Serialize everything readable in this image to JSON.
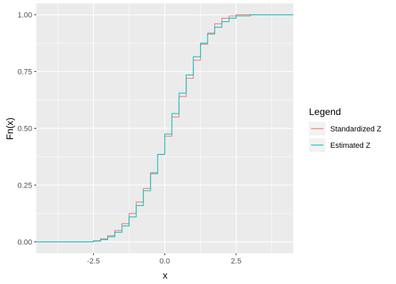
{
  "chart_data": {
    "type": "line",
    "title": "",
    "xlabel": "x",
    "ylabel": "Fn(x)",
    "xlim": [
      -4.5,
      4.5
    ],
    "ylim": [
      -0.05,
      1.05
    ],
    "x_ticks": [
      -2.5,
      0.0,
      2.5
    ],
    "x_tick_labels": [
      "-2.5",
      "0.0",
      "2.5"
    ],
    "y_ticks": [
      0.0,
      0.25,
      0.5,
      0.75,
      1.0
    ],
    "y_tick_labels": [
      "0.00",
      "0.25",
      "0.50",
      "0.75",
      "1.00"
    ],
    "x_minor": [
      -3.75,
      -1.25,
      1.25,
      3.75
    ],
    "y_minor": [
      0.125,
      0.375,
      0.625,
      0.875
    ],
    "grid": true,
    "legend": {
      "title": "Legend",
      "position": "right"
    },
    "series": [
      {
        "name": "Standardized Z",
        "color": "#F8766D",
        "x": [
          -4.5,
          -3.5,
          -3.0,
          -2.5,
          -2.25,
          -2.0,
          -1.75,
          -1.5,
          -1.25,
          -1.0,
          -0.75,
          -0.5,
          -0.25,
          0.0,
          0.25,
          0.5,
          0.75,
          1.0,
          1.25,
          1.5,
          1.75,
          2.0,
          2.25,
          2.5,
          3.0,
          3.5,
          4.5
        ],
        "values": [
          0.0,
          0.0,
          0.0,
          0.005,
          0.013,
          0.027,
          0.05,
          0.08,
          0.125,
          0.175,
          0.235,
          0.305,
          0.385,
          0.465,
          0.55,
          0.64,
          0.72,
          0.8,
          0.87,
          0.92,
          0.96,
          0.985,
          0.995,
          1.0,
          1.0,
          1.0,
          1.0
        ]
      },
      {
        "name": "Estimated Z",
        "color": "#00BFC4",
        "x": [
          -4.5,
          -3.5,
          -3.0,
          -2.5,
          -2.25,
          -2.0,
          -1.75,
          -1.5,
          -1.25,
          -1.0,
          -0.75,
          -0.5,
          -0.25,
          0.0,
          0.25,
          0.5,
          0.75,
          1.0,
          1.25,
          1.5,
          1.75,
          2.0,
          2.25,
          2.5,
          3.0,
          3.5,
          4.5
        ],
        "values": [
          0.0,
          0.0,
          0.0,
          0.003,
          0.01,
          0.022,
          0.042,
          0.07,
          0.11,
          0.16,
          0.225,
          0.3,
          0.385,
          0.475,
          0.565,
          0.655,
          0.735,
          0.815,
          0.875,
          0.915,
          0.945,
          0.97,
          0.985,
          0.995,
          1.0,
          1.0,
          1.0
        ]
      }
    ]
  }
}
